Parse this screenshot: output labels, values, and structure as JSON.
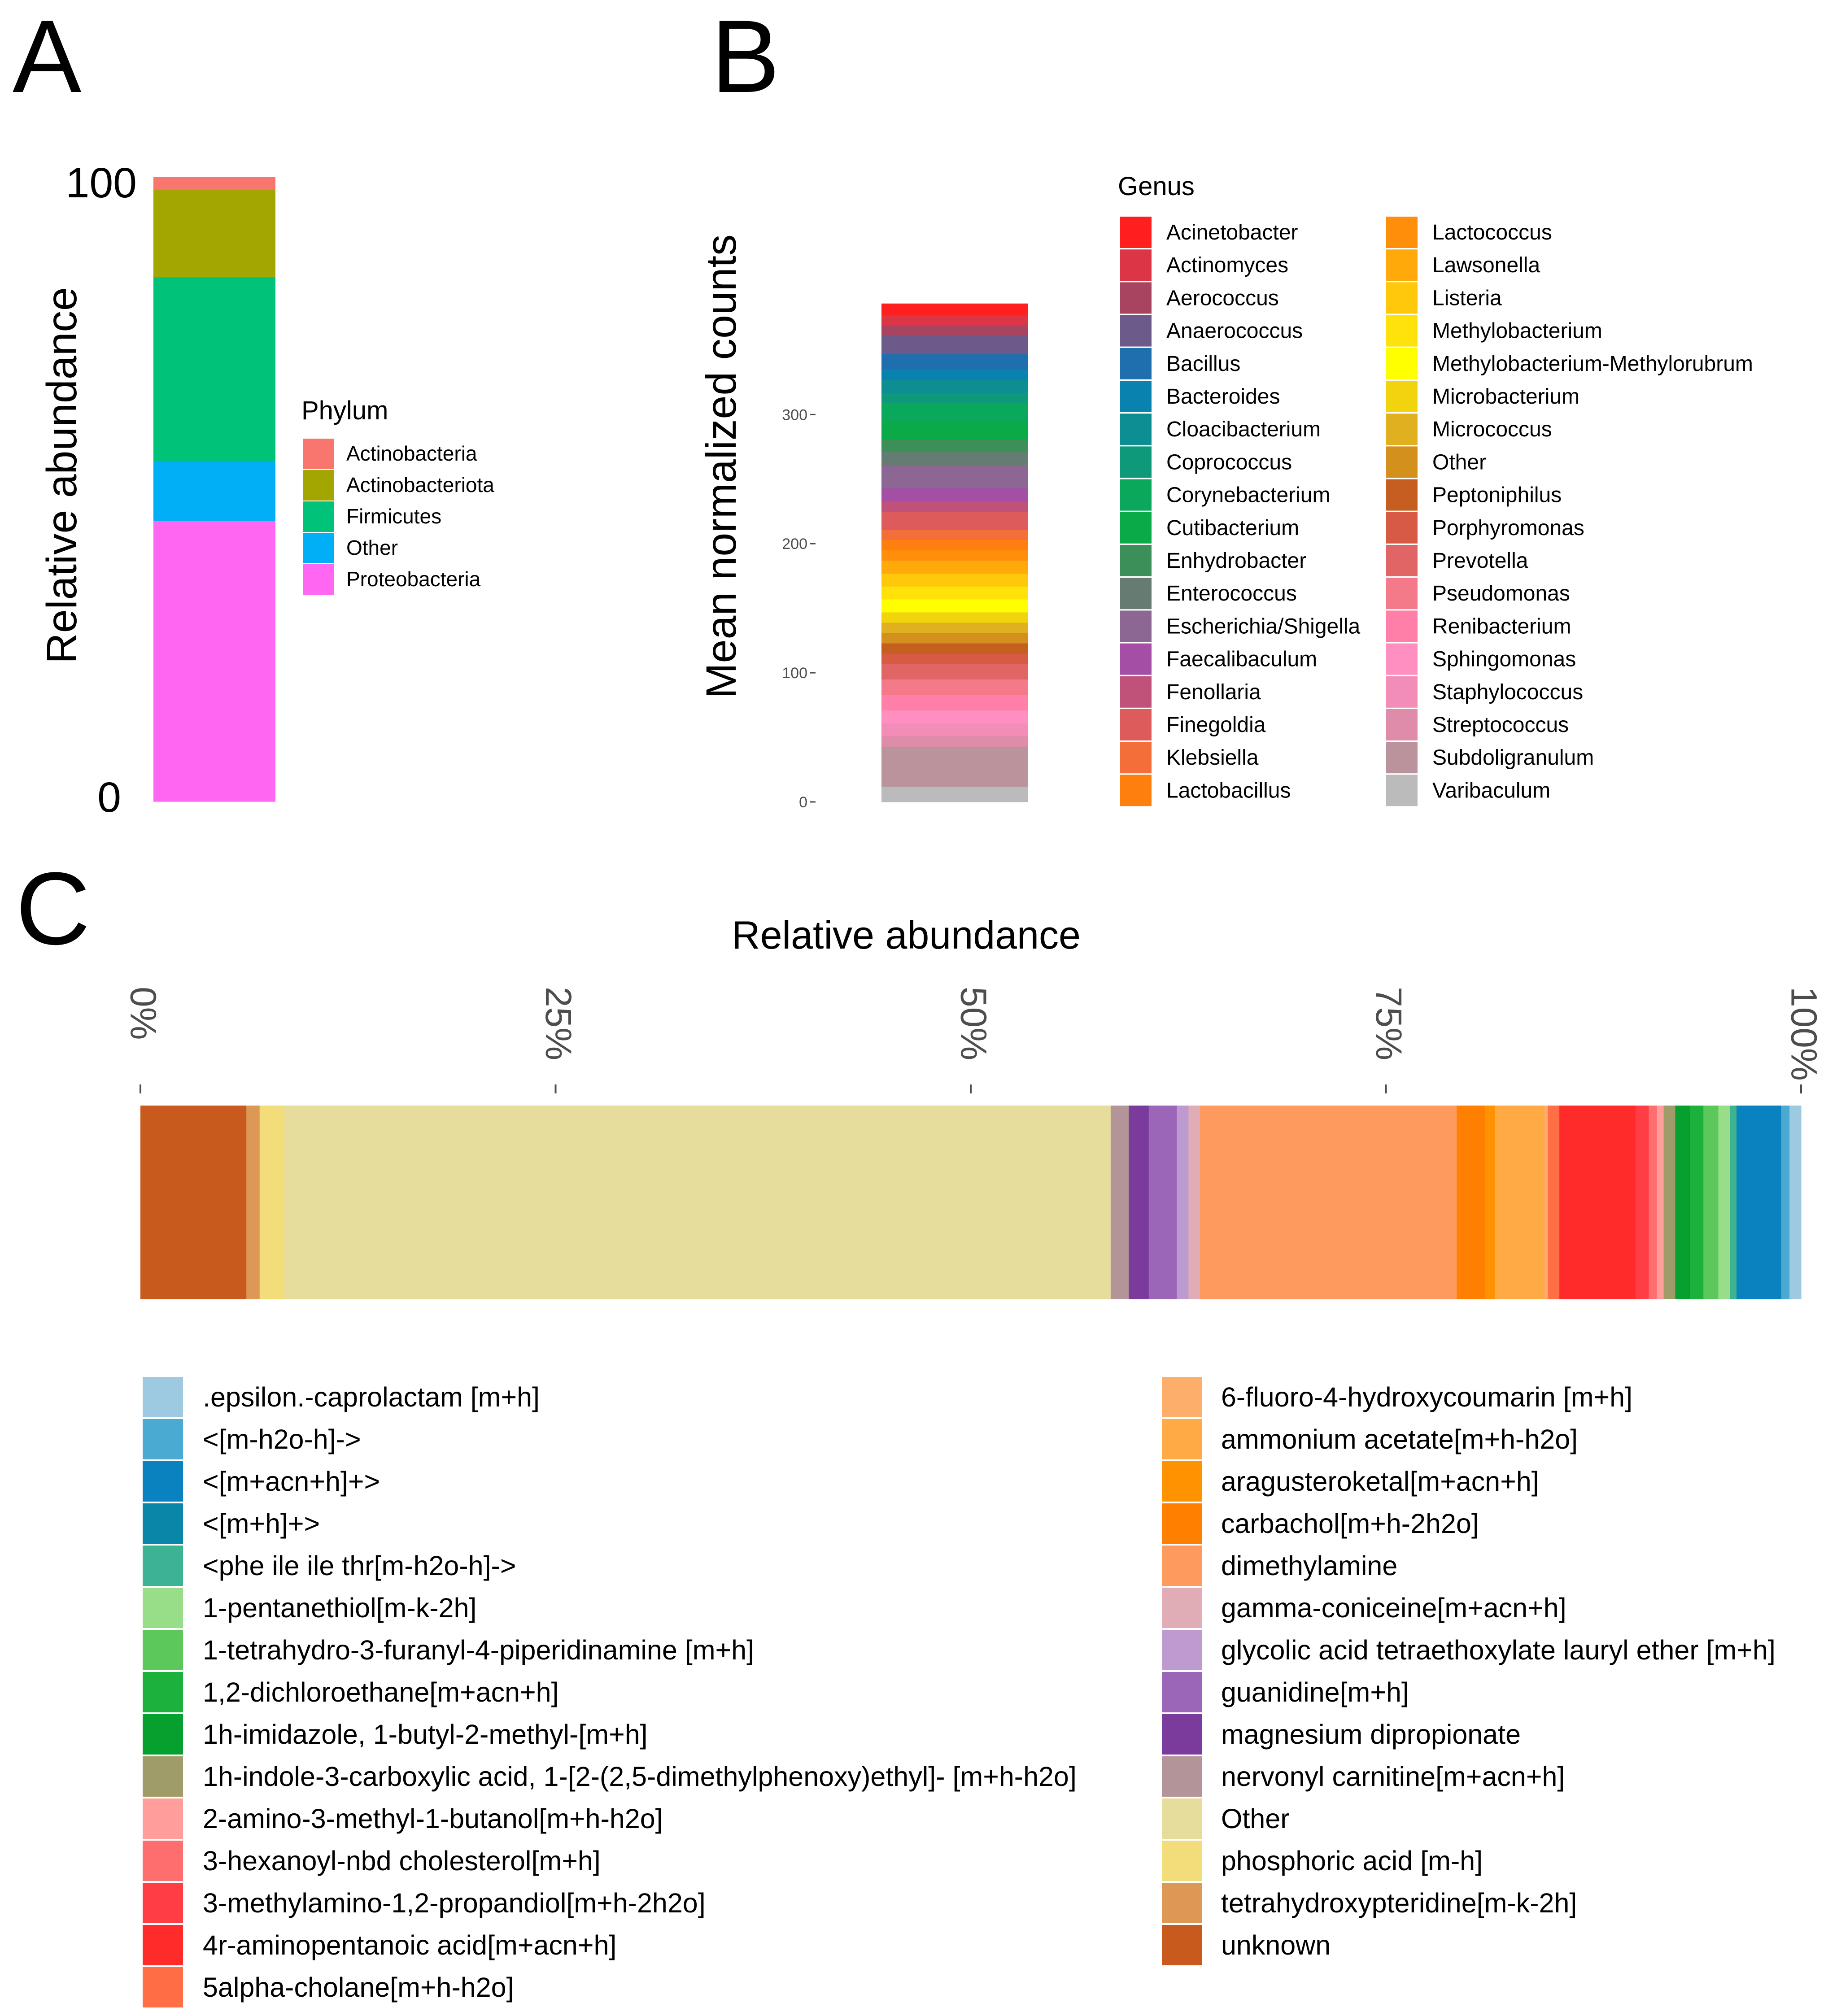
{
  "chart_data": [
    {
      "panel_label": "A",
      "type": "bar",
      "stacked": true,
      "ylabel": "Relative abundance",
      "yticks": [
        "100",
        "0"
      ],
      "ylim": [
        0,
        100
      ],
      "legend_title": "Phylum",
      "legend_position": "right",
      "segments": [
        {
          "name": "Proteobacteria",
          "value": 45,
          "color": "#FF66F2"
        },
        {
          "name": "Other",
          "value": 9.5,
          "color": "#00AFF5"
        },
        {
          "name": "Firmicutes",
          "value": 29.5,
          "color": "#00C278"
        },
        {
          "name": "Actinobacteriota",
          "value": 14,
          "color": "#A3A500"
        },
        {
          "name": "Actinobacteria",
          "value": 2,
          "color": "#F8766D"
        }
      ],
      "legend": [
        "Actinobacteria",
        "Actinobacteriota",
        "Firmicutes",
        "Other",
        "Proteobacteria"
      ]
    },
    {
      "panel_label": "B",
      "type": "bar",
      "stacked": true,
      "ylabel": "Mean normalized counts",
      "yticks": [
        0,
        100,
        200,
        300
      ],
      "ylim": [
        0,
        380
      ],
      "legend_title": "Genus",
      "legend_position": "right",
      "legend": [
        {
          "name": "Acinetobacter",
          "color": "#FF1F1F"
        },
        {
          "name": "Actinomyces",
          "color": "#DC3545"
        },
        {
          "name": "Aerococcus",
          "color": "#A94460"
        },
        {
          "name": "Anaerococcus",
          "color": "#6B5A8A"
        },
        {
          "name": "Bacillus",
          "color": "#1F6FAF"
        },
        {
          "name": "Bacteroides",
          "color": "#0A82B0"
        },
        {
          "name": "Cloacibacterium",
          "color": "#0C8E92"
        },
        {
          "name": "Coprococcus",
          "color": "#0E9A7A"
        },
        {
          "name": "Corynebacterium",
          "color": "#0AA85A"
        },
        {
          "name": "Cutibacterium",
          "color": "#0AAA48"
        },
        {
          "name": "Enhydrobacter",
          "color": "#3D8F5A"
        },
        {
          "name": "Enterococcus",
          "color": "#667C72"
        },
        {
          "name": "Escherichia/Shigella",
          "color": "#8C6793"
        },
        {
          "name": "Faecalibaculum",
          "color": "#A44FA5"
        },
        {
          "name": "Fenollaria",
          "color": "#C0527A"
        },
        {
          "name": "Finegoldia",
          "color": "#DD5B5B"
        },
        {
          "name": "Klebsiella",
          "color": "#F46E3A"
        },
        {
          "name": "Lactobacillus",
          "color": "#FF7F0E"
        },
        {
          "name": "Lactococcus",
          "color": "#FF8F0A"
        },
        {
          "name": "Lawsonella",
          "color": "#FFAA0A"
        },
        {
          "name": "Listeria",
          "color": "#FFC80A"
        },
        {
          "name": "Methylobacterium",
          "color": "#FFE20A"
        },
        {
          "name": "Methylobacterium-Methylorubrum",
          "color": "#FFFF00"
        },
        {
          "name": "Microbacterium",
          "color": "#F2D40E"
        },
        {
          "name": "Micrococcus",
          "color": "#E0B020"
        },
        {
          "name": "Other",
          "color": "#D4901C"
        },
        {
          "name": "Peptoniphilus",
          "color": "#C55E20"
        },
        {
          "name": "Porphyromonas",
          "color": "#D65A44"
        },
        {
          "name": "Prevotella",
          "color": "#E26565"
        },
        {
          "name": "Pseudomonas",
          "color": "#F47A8A"
        },
        {
          "name": "Renibacterium",
          "color": "#FF7FA8"
        },
        {
          "name": "Sphingomonas",
          "color": "#FF8FC0"
        },
        {
          "name": "Staphylococcus",
          "color": "#F28DB8"
        },
        {
          "name": "Streptococcus",
          "color": "#DE8CAA"
        },
        {
          "name": "Subdoligranulum",
          "color": "#BA939C"
        },
        {
          "name": "Varibaculum",
          "color": "#BBBBBB"
        }
      ],
      "segments": [
        {
          "name": "Varibaculum",
          "value": 12
        },
        {
          "name": "Subdoligranulum",
          "value": 31
        },
        {
          "name": "Streptococcus",
          "value": 8
        },
        {
          "name": "Staphylococcus",
          "value": 10
        },
        {
          "name": "Sphingomonas",
          "value": 10
        },
        {
          "name": "Renibacterium",
          "value": 12
        },
        {
          "name": "Pseudomonas",
          "value": 12
        },
        {
          "name": "Prevotella",
          "value": 12
        },
        {
          "name": "Porphyromonas",
          "value": 8
        },
        {
          "name": "Peptoniphilus",
          "value": 8
        },
        {
          "name": "Other",
          "value": 8
        },
        {
          "name": "Micrococcus",
          "value": 8
        },
        {
          "name": "Microbacterium",
          "value": 8
        },
        {
          "name": "Methylobacterium-Methylorubrum",
          "value": 10
        },
        {
          "name": "Methylobacterium",
          "value": 10
        },
        {
          "name": "Listeria",
          "value": 10
        },
        {
          "name": "Lawsonella",
          "value": 10
        },
        {
          "name": "Lactococcus",
          "value": 8
        },
        {
          "name": "Lactobacillus",
          "value": 8
        },
        {
          "name": "Klebsiella",
          "value": 8
        },
        {
          "name": "Finegoldia",
          "value": 14
        },
        {
          "name": "Fenollaria",
          "value": 8
        },
        {
          "name": "Faecalibaculum",
          "value": 10
        },
        {
          "name": "Escherichia/Shigella",
          "value": 18
        },
        {
          "name": "Enterococcus",
          "value": 10
        },
        {
          "name": "Enhydrobacter",
          "value": 10
        },
        {
          "name": "Cutibacterium",
          "value": 14
        },
        {
          "name": "Corynebacterium",
          "value": 14
        },
        {
          "name": "Coprococcus",
          "value": 8
        },
        {
          "name": "Cloacibacterium",
          "value": 10
        },
        {
          "name": "Bacteroides",
          "value": 8
        },
        {
          "name": "Bacillus",
          "value": 12
        },
        {
          "name": "Anaerococcus",
          "value": 14
        },
        {
          "name": "Aerococcus",
          "value": 8
        },
        {
          "name": "Actinomyces",
          "value": 8
        },
        {
          "name": "Acinetobacter",
          "value": 9
        }
      ]
    },
    {
      "panel_label": "C",
      "type": "bar",
      "orientation": "horizontal",
      "stacked": true,
      "title": "Relative abundance",
      "xticks": [
        "0%",
        "25%",
        "50%",
        "75%",
        "100%"
      ],
      "xlim": [
        0,
        100
      ],
      "legend_position": "bottom",
      "legend_col1": [
        {
          "name": ".epsilon.-caprolactam [m+h]",
          "color": "#9ECAE1"
        },
        {
          "name": "<[m-h2o-h]->",
          "color": "#4AAAD2"
        },
        {
          "name": "<[m+acn+h]+>",
          "color": "#0A82C0"
        },
        {
          "name": "<[m+h]+>",
          "color": "#0A87A8"
        },
        {
          "name": "<phe ile ile thr[m-h2o-h]->",
          "color": "#3DB393"
        },
        {
          "name": "1-pentanethiol[m-k-2h]",
          "color": "#98DD88"
        },
        {
          "name": "1-tetrahydro-3-furanyl-4-piperidinamine [m+h]",
          "color": "#5CC85C"
        },
        {
          "name": "1,2-dichloroethane[m+acn+h]",
          "color": "#1CB13D"
        },
        {
          "name": "1h-imidazole, 1-butyl-2-methyl-[m+h]",
          "color": "#06A02E"
        },
        {
          "name": "1h-indole-3-carboxylic acid, 1-[2-(2,5-dimethylphenoxy)ethyl]- [m+h-h2o]",
          "color": "#A09C6A"
        },
        {
          "name": "2-amino-3-methyl-1-butanol[m+h-h2o]",
          "color": "#FF9E9B"
        },
        {
          "name": "3-hexanoyl-nbd cholesterol[m+h]",
          "color": "#FF6E6E"
        },
        {
          "name": "3-methylamino-1,2-propandiol[m+h-2h2o]",
          "color": "#FF3D44"
        },
        {
          "name": "4r-aminopentanoic acid[m+acn+h]",
          "color": "#FF2A2A"
        },
        {
          "name": "5alpha-cholane[m+h-h2o]",
          "color": "#FF6E44"
        }
      ],
      "legend_col2": [
        {
          "name": "6-fluoro-4-hydroxycoumarin [m+h]",
          "color": "#FDAE6B"
        },
        {
          "name": "ammonium acetate[m+h-h2o]",
          "color": "#FFAA44"
        },
        {
          "name": "aragusteroketal[m+acn+h]",
          "color": "#FF9200"
        },
        {
          "name": "carbachol[m+h-2h2o]",
          "color": "#FF8000"
        },
        {
          "name": "dimethylamine",
          "color": "#FF9A5E"
        },
        {
          "name": "gamma-coniceine[m+acn+h]",
          "color": "#E0ACB5"
        },
        {
          "name": "glycolic acid tetraethoxylate lauryl ether [m+h]",
          "color": "#BD9BD0"
        },
        {
          "name": "guanidine[m+h]",
          "color": "#9C66B8"
        },
        {
          "name": "magnesium dipropionate",
          "color": "#7A3B9C"
        },
        {
          "name": "nervonyl carnitine[m+acn+h]",
          "color": "#B29499"
        },
        {
          "name": "Other",
          "color": "#E6DD9C"
        },
        {
          "name": "phosphoric acid [m-h]",
          "color": "#F2DD7A"
        },
        {
          "name": "tetrahydroxypteridine[m-k-2h]",
          "color": "#DD9855"
        },
        {
          "name": "unknown",
          "color": "#C85A1E"
        }
      ],
      "segments": [
        {
          "name": "unknown",
          "value": 6.4
        },
        {
          "name": "tetrahydroxypteridine[m-k-2h]",
          "value": 0.8
        },
        {
          "name": "phosphoric acid [m-h]",
          "value": 1.5
        },
        {
          "name": "Other",
          "value": 49.9
        },
        {
          "name": "nervonyl carnitine[m+acn+h]",
          "value": 1.1
        },
        {
          "name": "magnesium dipropionate",
          "value": 1.2
        },
        {
          "name": "guanidine[m+h]",
          "value": 1.7
        },
        {
          "name": "glycolic acid tetraethoxylate lauryl ether [m+h]",
          "value": 0.7
        },
        {
          "name": "gamma-coniceine[m+acn+h]",
          "value": 0.7
        },
        {
          "name": "dimethylamine",
          "value": 15.5
        },
        {
          "name": "carbachol[m+h-2h2o]",
          "value": 1.7
        },
        {
          "name": "aragusteroketal[m+acn+h]",
          "value": 0.6
        },
        {
          "name": "ammonium acetate[m+h-h2o]",
          "value": 3.0
        },
        {
          "name": "6-fluoro-4-hydroxycoumarin [m+h]",
          "value": 0.2
        },
        {
          "name": "5alpha-cholane[m+h-h2o]",
          "value": 0.7
        },
        {
          "name": "4r-aminopentanoic acid[m+acn+h]",
          "value": 4.6
        },
        {
          "name": "3-methylamino-1,2-propandiol[m+h-2h2o]",
          "value": 0.8
        },
        {
          "name": "3-hexanoyl-nbd cholesterol[m+h]",
          "value": 0.5
        },
        {
          "name": "2-amino-3-methyl-1-butanol[m+h-h2o]",
          "value": 0.4
        },
        {
          "name": "1h-indole-3-carboxylic acid, 1-[2-(2,5-dimethylphenoxy)ethyl]- [m+h-h2o]",
          "value": 0.7
        },
        {
          "name": "1h-imidazole, 1-butyl-2-methyl-[m+h]",
          "value": 0.9
        },
        {
          "name": "1,2-dichloroethane[m+acn+h]",
          "value": 0.8
        },
        {
          "name": "1-tetrahydro-3-furanyl-4-piperidinamine [m+h]",
          "value": 0.9
        },
        {
          "name": "1-pentanethiol[m-k-2h]",
          "value": 0.7
        },
        {
          "name": "<phe ile ile thr[m-h2o-h]->",
          "value": 0.4
        },
        {
          "name": "<[m+h]+>",
          "value": 0.1
        },
        {
          "name": "<[m+acn+h]+>",
          "value": 2.6
        },
        {
          "name": "<[m-h2o-h]->",
          "value": 0.5
        },
        {
          "name": ".epsilon.-caprolactam [m+h]",
          "value": 0.7
        }
      ]
    }
  ]
}
